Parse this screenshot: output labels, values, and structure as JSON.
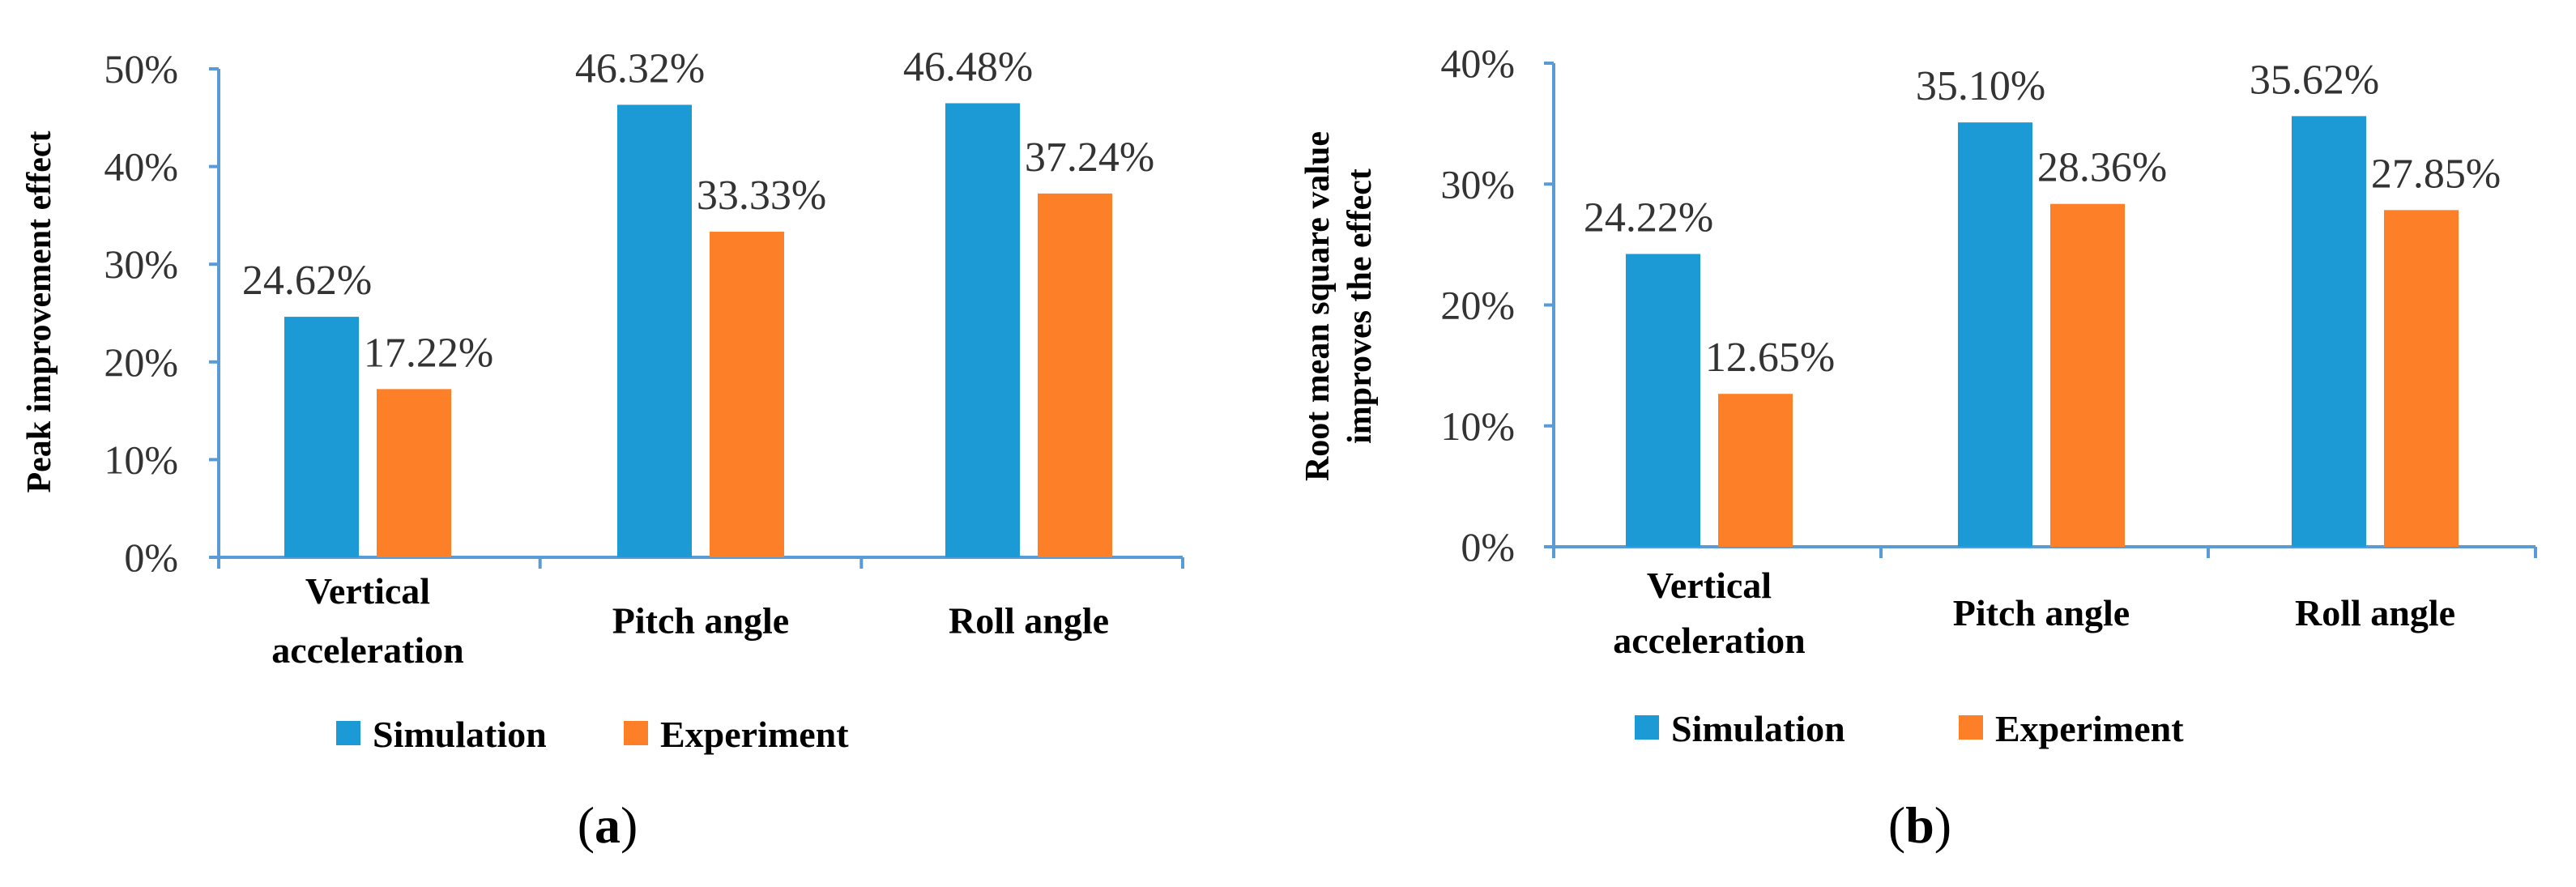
{
  "chart_data": [
    {
      "type": "bar",
      "panel_label": "a",
      "ylabel": "Peak improvement effect",
      "ylim": [
        0,
        50
      ],
      "yticks": [
        "0%",
        "10%",
        "20%",
        "30%",
        "40%",
        "50%"
      ],
      "categories": [
        [
          "Vertical",
          "acceleration"
        ],
        [
          "Pitch angle"
        ],
        [
          "Roll angle"
        ]
      ],
      "series": [
        {
          "name": "Simulation",
          "color": "#1b9ad6",
          "values": [
            24.62,
            46.32,
            46.48
          ],
          "labels": [
            "24.62%",
            "46.32%",
            "46.48%"
          ]
        },
        {
          "name": "Experiment",
          "color": "#fd7f28",
          "values": [
            17.22,
            33.33,
            37.24
          ],
          "labels": [
            "17.22%",
            "33.33%",
            "37.24%"
          ]
        }
      ],
      "legend": "bottom"
    },
    {
      "type": "bar",
      "panel_label": "b",
      "ylabel": [
        "Root mean square value",
        "improves the effect"
      ],
      "ylim": [
        0,
        40
      ],
      "yticks": [
        "0%",
        "10%",
        "20%",
        "30%",
        "40%"
      ],
      "categories": [
        [
          "Vertical",
          "acceleration"
        ],
        [
          "Pitch angle"
        ],
        [
          "Roll angle"
        ]
      ],
      "series": [
        {
          "name": "Simulation",
          "color": "#1b9ad6",
          "values": [
            24.22,
            35.1,
            35.62
          ],
          "labels": [
            "24.22%",
            "35.10%",
            "35.62%"
          ]
        },
        {
          "name": "Experiment",
          "color": "#fd7f28",
          "values": [
            12.65,
            28.36,
            27.85
          ],
          "labels": [
            "12.65%",
            "28.36%",
            "27.85%"
          ]
        }
      ],
      "legend": "bottom"
    }
  ]
}
